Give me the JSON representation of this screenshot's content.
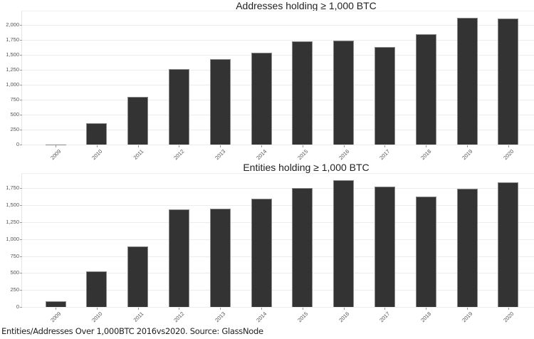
{
  "chart_data": [
    {
      "type": "bar",
      "title": "Addresses holding ≥ 1,000 BTC",
      "xlabel": "",
      "ylabel": "",
      "categories": [
        "2009",
        "2010",
        "2011",
        "2012",
        "2013",
        "2014",
        "2015",
        "2016",
        "2017",
        "2018",
        "2019",
        "2020"
      ],
      "values": [
        8,
        355,
        800,
        1262,
        1429,
        1536,
        1726,
        1738,
        1634,
        1849,
        2119,
        2114
      ],
      "yticks": [
        0,
        250,
        500,
        750,
        1000,
        1250,
        1500,
        1750,
        2000
      ],
      "ytick_labels": [
        "0",
        "250",
        "500",
        "750",
        "1,000",
        "1,250",
        "1,500",
        "1,750",
        "2,000"
      ],
      "ylim": [
        0,
        2000
      ],
      "grid": true,
      "bar_color": "#333333"
    },
    {
      "type": "bar",
      "title": "Entities holding ≥ 1,000 BTC",
      "xlabel": "",
      "ylabel": "",
      "categories": [
        "2009",
        "2010",
        "2011",
        "2012",
        "2013",
        "2014",
        "2015",
        "2016",
        "2017",
        "2018",
        "2019",
        "2020"
      ],
      "values": [
        88,
        525,
        889,
        1442,
        1449,
        1593,
        1750,
        1869,
        1771,
        1628,
        1746,
        1841
      ],
      "yticks": [
        0,
        250,
        500,
        750,
        1000,
        1250,
        1500,
        1750
      ],
      "ytick_labels": [
        "0",
        "250",
        "500",
        "750",
        "1,000",
        "1,250",
        "1,500",
        "1,750"
      ],
      "ylim": [
        0,
        1750
      ],
      "grid": true,
      "bar_color": "#333333"
    }
  ],
  "caption": "Entities/Addresses Over 1,000BTC 2016vs2020. Source: GlassNode"
}
